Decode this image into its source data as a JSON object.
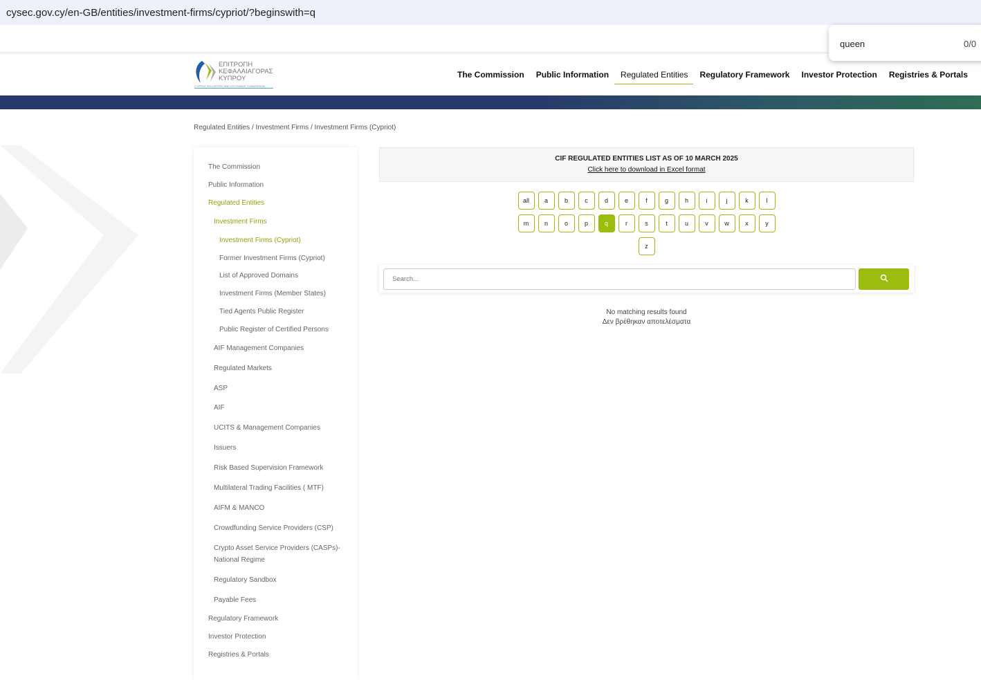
{
  "browser": {
    "url": "cysec.gov.cy/en-GB/entities/investment-firms/cypriot/?beginswith=q"
  },
  "find": {
    "query": "queen",
    "count": "0/0"
  },
  "logo": {
    "greek": "ΕΠΙΤΡΟΠΗ ΚΕΦΑΛΑΙΑΓΟΡΑΣ ΚΥΠΡΟΥ",
    "english": "CYPRUS SECURITIES AND EXCHANGE COMMISSION"
  },
  "nav": [
    "The Commission",
    "Public Information",
    "Regulated Entities",
    "Regulatory Framework",
    "Investor Protection",
    "Registries & Portals"
  ],
  "breadcrumb": "Regulated Entities / Investment Firms / Investment Firms (Cypriot)",
  "sidebar": [
    "The Commission",
    "Public Information",
    "Regulated Entities",
    "Investment Firms",
    "Investment Firms (Cypriot)",
    "Former Investment Firms (Cypriot)",
    "List of Approved Domains",
    "Investment Firms (Member States)",
    "Tied Agents Public Register",
    "Public Register of Certified Persons",
    "AIF Management Companies",
    "Regulated Markets",
    "ASP",
    "AIF",
    "UCITS & Management Companies",
    "Issuers",
    "Risk Based Supervision Framework",
    "Multilateral Trading Facilities ( MTF)",
    "AIFM & MANCO",
    "Crowdfunding Service Providers (CSP)",
    "Crypto Asset Service Providers (CASPs)-National Regime",
    "Regulatory Sandbox",
    "Payable Fees",
    "Regulatory Framework",
    "Investor Protection",
    "Registries & Portals"
  ],
  "info": {
    "title": "CIF REGULATED ENTITIES LIST AS OF 10 MARCH 2025",
    "link": "Click here to download in Excel format"
  },
  "letters": [
    "all",
    "a",
    "b",
    "c",
    "d",
    "e",
    "f",
    "g",
    "h",
    "i",
    "j",
    "k",
    "l",
    "m",
    "n",
    "o",
    "p",
    "q",
    "r",
    "s",
    "t",
    "u",
    "v",
    "w",
    "x",
    "y",
    "z"
  ],
  "active_letter": "q",
  "search": {
    "placeholder": "Search...",
    "icon": "search-icon"
  },
  "results": {
    "en": "No matching results found",
    "el": "Δεν βρέθηκαν αποτελέσματα"
  },
  "colors": {
    "accent": "#9bbd0f",
    "band": "#283a6b"
  }
}
